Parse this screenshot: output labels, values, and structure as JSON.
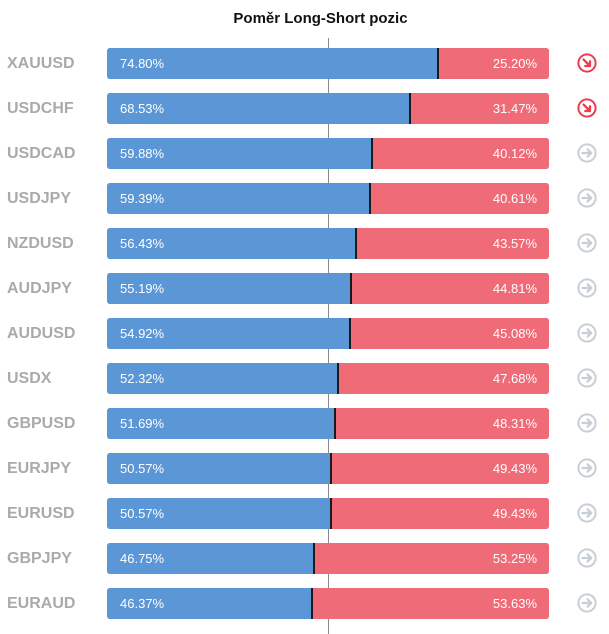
{
  "chart_data": {
    "type": "bar",
    "title": "Poměr Long-Short pozic",
    "series_colors": {
      "long": "#5b96d6",
      "short": "#ef6b78"
    },
    "rows": [
      {
        "symbol": "XAUUSD",
        "long": 74.8,
        "short": 25.2,
        "long_label": "74.80%",
        "short_label": "25.20%",
        "signal": "down"
      },
      {
        "symbol": "USDCHF",
        "long": 68.53,
        "short": 31.47,
        "long_label": "68.53%",
        "short_label": "31.47%",
        "signal": "down"
      },
      {
        "symbol": "USDCAD",
        "long": 59.88,
        "short": 40.12,
        "long_label": "59.88%",
        "short_label": "40.12%",
        "signal": "neutral"
      },
      {
        "symbol": "USDJPY",
        "long": 59.39,
        "short": 40.61,
        "long_label": "59.39%",
        "short_label": "40.61%",
        "signal": "neutral"
      },
      {
        "symbol": "NZDUSD",
        "long": 56.43,
        "short": 43.57,
        "long_label": "56.43%",
        "short_label": "43.57%",
        "signal": "neutral"
      },
      {
        "symbol": "AUDJPY",
        "long": 55.19,
        "short": 44.81,
        "long_label": "55.19%",
        "short_label": "44.81%",
        "signal": "neutral"
      },
      {
        "symbol": "AUDUSD",
        "long": 54.92,
        "short": 45.08,
        "long_label": "54.92%",
        "short_label": "45.08%",
        "signal": "neutral"
      },
      {
        "symbol": "USDX",
        "long": 52.32,
        "short": 47.68,
        "long_label": "52.32%",
        "short_label": "47.68%",
        "signal": "neutral"
      },
      {
        "symbol": "GBPUSD",
        "long": 51.69,
        "short": 48.31,
        "long_label": "51.69%",
        "short_label": "48.31%",
        "signal": "neutral"
      },
      {
        "symbol": "EURJPY",
        "long": 50.57,
        "short": 49.43,
        "long_label": "50.57%",
        "short_label": "49.43%",
        "signal": "neutral"
      },
      {
        "symbol": "EURUSD",
        "long": 50.57,
        "short": 49.43,
        "long_label": "50.57%",
        "short_label": "49.43%",
        "signal": "neutral"
      },
      {
        "symbol": "GBPJPY",
        "long": 46.75,
        "short": 53.25,
        "long_label": "46.75%",
        "short_label": "53.25%",
        "signal": "neutral"
      },
      {
        "symbol": "EURAUD",
        "long": 46.37,
        "short": 53.63,
        "long_label": "46.37%",
        "short_label": "53.63%",
        "signal": "neutral"
      }
    ]
  },
  "icons": {
    "down": "arrow-down-right-circle-icon",
    "neutral": "arrow-right-circle-icon"
  },
  "icon_colors": {
    "down": "#ee3b4f",
    "neutral": "#c7ced6"
  }
}
